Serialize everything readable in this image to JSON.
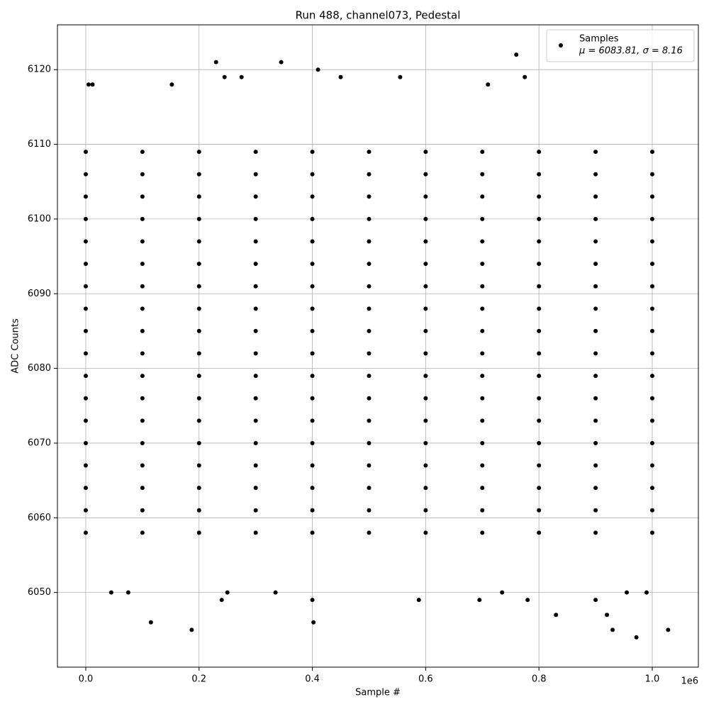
{
  "chart_data": {
    "type": "scatter",
    "title": "Run 488, channel073, Pedestal",
    "xlabel": "Sample #",
    "ylabel": "ADC Counts",
    "x_offset_label": "1e6",
    "xlim": [
      -50000,
      1081400
    ],
    "ylim": [
      6040,
      6126
    ],
    "xticks": [
      {
        "value": 0,
        "label": "0.0"
      },
      {
        "value": 200000,
        "label": "0.2"
      },
      {
        "value": 400000,
        "label": "0.4"
      },
      {
        "value": 600000,
        "label": "0.6"
      },
      {
        "value": 800000,
        "label": "0.8"
      },
      {
        "value": 1000000,
        "label": "1.0"
      }
    ],
    "yticks": [
      6050,
      6060,
      6070,
      6080,
      6090,
      6100,
      6110,
      6120
    ],
    "grid": true,
    "legend": "upper right",
    "series": [
      {
        "name": "Samples",
        "stats": "μ = 6083.81, σ = 8.16",
        "color": "#000000",
        "x": [
          0,
          100000,
          200000,
          300000,
          400000,
          500000,
          600000,
          700000,
          800000,
          900000,
          1000000,
          0,
          100000,
          200000,
          300000,
          400000,
          500000,
          600000,
          700000,
          800000,
          900000,
          1000000,
          0,
          100000,
          200000,
          300000,
          400000,
          500000,
          600000,
          700000,
          800000,
          900000,
          1000000,
          0,
          100000,
          200000,
          300000,
          400000,
          500000,
          600000,
          700000,
          800000,
          900000,
          1000000,
          0,
          100000,
          200000,
          300000,
          400000,
          500000,
          600000,
          700000,
          800000,
          900000,
          1000000,
          0,
          100000,
          200000,
          300000,
          400000,
          500000,
          600000,
          700000,
          800000,
          900000,
          1000000,
          0,
          100000,
          200000,
          300000,
          400000,
          500000,
          600000,
          700000,
          800000,
          900000,
          1000000,
          0,
          100000,
          200000,
          300000,
          400000,
          500000,
          600000,
          700000,
          800000,
          900000,
          1000000,
          0,
          100000,
          200000,
          300000,
          400000,
          500000,
          600000,
          700000,
          800000,
          900000,
          1000000,
          0,
          100000,
          200000,
          300000,
          400000,
          500000,
          600000,
          700000,
          800000,
          900000,
          1000000,
          0,
          100000,
          200000,
          300000,
          400000,
          500000,
          600000,
          700000,
          800000,
          900000,
          1000000,
          0,
          100000,
          200000,
          300000,
          400000,
          500000,
          600000,
          700000,
          800000,
          900000,
          1000000,
          0,
          100000,
          200000,
          300000,
          400000,
          500000,
          600000,
          700000,
          800000,
          900000,
          1000000,
          0,
          100000,
          200000,
          300000,
          400000,
          500000,
          600000,
          700000,
          800000,
          900000,
          1000000,
          0,
          100000,
          200000,
          300000,
          400000,
          500000,
          600000,
          700000,
          800000,
          900000,
          1000000,
          0,
          100000,
          200000,
          300000,
          400000,
          500000,
          600000,
          700000,
          800000,
          900000,
          1000000,
          0,
          100000,
          200000,
          300000,
          400000,
          500000,
          600000,
          700000,
          800000,
          900000,
          1000000,
          0,
          100000,
          200000,
          300000,
          400000,
          500000,
          600000,
          700000,
          800000,
          900000,
          1000000,
          230000,
          760000,
          410000,
          345000,
          245000,
          275000,
          450000,
          555000,
          775000,
          5000,
          12000,
          152000,
          710000,
          45000,
          75000,
          115000,
          187000,
          240000,
          250000,
          335000,
          400000,
          402000,
          588000,
          695000,
          735000,
          780000,
          830000,
          920000,
          930000,
          972000,
          1028000,
          990000,
          955000,
          900000
        ],
        "values": [
          6058,
          6058,
          6058,
          6058,
          6058,
          6058,
          6058,
          6058,
          6058,
          6058,
          6058,
          6061,
          6061,
          6061,
          6061,
          6061,
          6061,
          6061,
          6061,
          6061,
          6061,
          6061,
          6064,
          6064,
          6064,
          6064,
          6064,
          6064,
          6064,
          6064,
          6064,
          6064,
          6064,
          6067,
          6067,
          6067,
          6067,
          6067,
          6067,
          6067,
          6067,
          6067,
          6067,
          6067,
          6070,
          6070,
          6070,
          6070,
          6070,
          6070,
          6070,
          6070,
          6070,
          6070,
          6070,
          6073,
          6073,
          6073,
          6073,
          6073,
          6073,
          6073,
          6073,
          6073,
          6073,
          6073,
          6076,
          6076,
          6076,
          6076,
          6076,
          6076,
          6076,
          6076,
          6076,
          6076,
          6076,
          6079,
          6079,
          6079,
          6079,
          6079,
          6079,
          6079,
          6079,
          6079,
          6079,
          6079,
          6082,
          6082,
          6082,
          6082,
          6082,
          6082,
          6082,
          6082,
          6082,
          6082,
          6082,
          6085,
          6085,
          6085,
          6085,
          6085,
          6085,
          6085,
          6085,
          6085,
          6085,
          6085,
          6088,
          6088,
          6088,
          6088,
          6088,
          6088,
          6088,
          6088,
          6088,
          6088,
          6088,
          6091,
          6091,
          6091,
          6091,
          6091,
          6091,
          6091,
          6091,
          6091,
          6091,
          6091,
          6094,
          6094,
          6094,
          6094,
          6094,
          6094,
          6094,
          6094,
          6094,
          6094,
          6094,
          6097,
          6097,
          6097,
          6097,
          6097,
          6097,
          6097,
          6097,
          6097,
          6097,
          6097,
          6100,
          6100,
          6100,
          6100,
          6100,
          6100,
          6100,
          6100,
          6100,
          6100,
          6100,
          6103,
          6103,
          6103,
          6103,
          6103,
          6103,
          6103,
          6103,
          6103,
          6103,
          6103,
          6106,
          6106,
          6106,
          6106,
          6106,
          6106,
          6106,
          6106,
          6106,
          6106,
          6106,
          6109,
          6109,
          6109,
          6109,
          6109,
          6109,
          6109,
          6109,
          6109,
          6109,
          6109,
          6121,
          6122,
          6120,
          6121,
          6119,
          6119,
          6119,
          6119,
          6119,
          6118,
          6118,
          6118,
          6118,
          6050,
          6050,
          6046,
          6045,
          6049,
          6050,
          6050,
          6049,
          6046,
          6049,
          6049,
          6050,
          6049,
          6047,
          6047,
          6045,
          6044,
          6045,
          6050,
          6050,
          6049
        ]
      }
    ]
  }
}
